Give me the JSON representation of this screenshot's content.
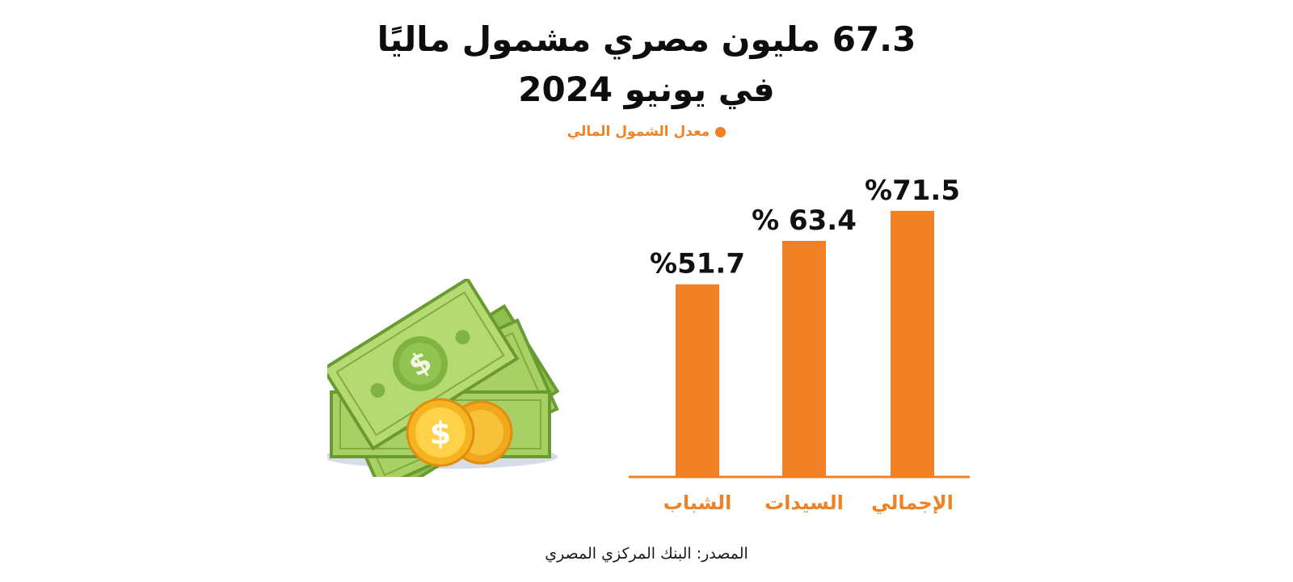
{
  "title_line1": "67.3 مليون مصري مشمول ماليًا",
  "title_line2": "في يونيو 2024",
  "source": "المصدر: البنك المركزي المصري",
  "colors": {
    "bar": "#f08124",
    "text": "#111111"
  },
  "chart_data": {
    "type": "bar",
    "title": "",
    "legend": {
      "label": "معدل الشمول المالي",
      "placement": "top-center"
    },
    "categories": [
      "الشباب",
      "السيدات",
      "الإجمالي"
    ],
    "values": [
      51.7,
      63.4,
      71.5
    ],
    "value_labels": [
      "%51.7",
      "% 63.4",
      "%71.5"
    ],
    "unit": "%",
    "ylim": [
      0,
      100
    ],
    "grid": false
  },
  "illustration": {
    "icon": "money-cash-coins-icon",
    "coin_symbol": "$"
  }
}
